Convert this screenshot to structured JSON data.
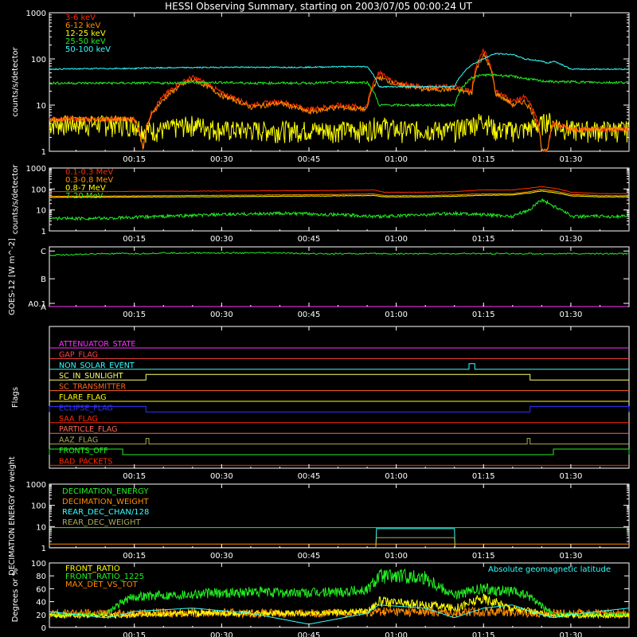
{
  "title": "HESSI Observing Summary, starting on 2003/07/05 00:00:24 UT",
  "time_axis": {
    "ticks": [
      "00:15",
      "00:30",
      "00:45",
      "01:00",
      "01:15",
      "01:30"
    ],
    "tick_minutes": [
      15,
      30,
      45,
      60,
      75,
      90
    ],
    "range_minutes": [
      0.4,
      100
    ]
  },
  "colors": {
    "white": "#ffffff",
    "red": "#ff2a00",
    "orange": "#ff8c00",
    "yellow": "#ffff00",
    "green": "#22ee22",
    "cyan": "#33ffff",
    "magenta": "#ff33ff",
    "blue": "#3333ff",
    "salmon": "#ff6666",
    "olive": "#c8b400",
    "gray_green": "#aaaa55"
  },
  "chart_data": [
    {
      "type": "line",
      "panel": "counts-high",
      "ylabel": "counts/s/detector",
      "scale": "log",
      "ylim": [
        1,
        1000
      ],
      "yticks": [
        "1",
        "10",
        "100",
        "1000"
      ],
      "legend": [
        "3-6 keV",
        "6-12 keV",
        "12-25 keV",
        "25-50 keV",
        "50-100 keV"
      ],
      "x": [
        0,
        10,
        15,
        16.5,
        20,
        25,
        30,
        35,
        40,
        45,
        50,
        55,
        57,
        60,
        65,
        70,
        73,
        75,
        77,
        80,
        82,
        85,
        86,
        87,
        90,
        95,
        100
      ],
      "series": [
        {
          "name": "3-6 keV",
          "color": "#ff2a00",
          "values": [
            5,
            5,
            5,
            1,
            15,
            40,
            18,
            10,
            12,
            8,
            10,
            9,
            50,
            30,
            25,
            25,
            20,
            150,
            20,
            12,
            15,
            1,
            1,
            4,
            3,
            3,
            3
          ]
        },
        {
          "name": "6-12 keV",
          "color": "#ff8c00",
          "values": [
            5,
            5,
            5,
            1,
            13,
            35,
            16,
            9,
            11,
            7,
            9,
            8,
            40,
            28,
            22,
            22,
            18,
            120,
            18,
            10,
            12,
            1,
            1,
            4,
            3,
            3,
            3
          ]
        },
        {
          "name": "12-25 keV",
          "color": "#ffff00",
          "values": [
            4,
            4,
            4,
            3,
            3,
            4,
            3,
            3,
            3,
            3,
            3,
            3,
            4,
            3,
            3,
            3,
            4,
            5,
            3,
            3,
            3,
            4,
            5,
            4,
            3,
            3,
            3
          ]
        },
        {
          "name": "25-50 keV",
          "color": "#22ee22",
          "values": [
            30,
            30,
            30,
            30,
            30,
            31,
            31,
            30,
            30,
            30,
            31,
            31,
            10,
            10,
            10,
            10,
            40,
            45,
            45,
            42,
            38,
            33,
            33,
            32,
            32,
            31,
            31
          ]
        },
        {
          "name": "50-100 keV",
          "color": "#33ffff",
          "values": [
            60,
            62,
            62,
            64,
            64,
            65,
            66,
            66,
            66,
            66,
            68,
            68,
            25,
            25,
            25,
            25,
            75,
            100,
            130,
            125,
            100,
            90,
            80,
            90,
            60,
            60,
            60
          ]
        }
      ]
    },
    {
      "type": "line",
      "panel": "counts-low",
      "ylabel": "counts/s/detector",
      "scale": "log",
      "ylim": [
        1,
        1000
      ],
      "yticks": [
        "1",
        "10",
        "100",
        "1000"
      ],
      "legend": [
        "0.1-0.3 MeV",
        "0.3-0.8 MeV",
        "0.8-7 MeV",
        "7-20 MeV"
      ],
      "x": [
        0,
        10,
        20,
        30,
        40,
        50,
        56,
        58,
        65,
        70,
        75,
        80,
        83,
        85,
        87,
        90,
        95,
        100
      ],
      "series": [
        {
          "name": "0.1-0.3 MeV",
          "color": "#ff2a00",
          "values": [
            75,
            76,
            78,
            80,
            82,
            85,
            90,
            70,
            70,
            75,
            90,
            90,
            110,
            130,
            110,
            70,
            60,
            60
          ]
        },
        {
          "name": "0.3-0.8 MeV",
          "color": "#ff8c00",
          "values": [
            45,
            46,
            48,
            50,
            52,
            55,
            58,
            48,
            48,
            52,
            58,
            60,
            75,
            95,
            80,
            55,
            48,
            48
          ]
        },
        {
          "name": "0.8-7 MeV",
          "color": "#ffff00",
          "values": [
            40,
            41,
            42,
            43,
            45,
            47,
            49,
            42,
            42,
            45,
            50,
            52,
            65,
            80,
            68,
            47,
            42,
            42
          ]
        },
        {
          "name": "7-20 MeV",
          "color": "#22ee22",
          "values": [
            4,
            4,
            5,
            6,
            7,
            6,
            5,
            5,
            6,
            7,
            6,
            5,
            10,
            30,
            15,
            5,
            5,
            5
          ]
        }
      ]
    },
    {
      "type": "line",
      "panel": "goes",
      "ylabel": "GOES-12 [W m^-2]",
      "scale": "log",
      "ytick_labels": [
        "A0.1",
        "A",
        "B",
        "C"
      ],
      "x": [
        0,
        10,
        15,
        16,
        20,
        30,
        35,
        40,
        45,
        50,
        55,
        60,
        65,
        70,
        75,
        78,
        80,
        85,
        90,
        95,
        100
      ],
      "series": [
        {
          "name": "GOES long",
          "color": "#22ee22",
          "classes": [
            "C0.7",
            "C0.8",
            "C0.8",
            "C0.8",
            "C0.85",
            "C0.85",
            "C0.85",
            "C0.85",
            "C0.8",
            "C0.8",
            "C0.8",
            "C0.8",
            "C0.8",
            "C0.8",
            "C0.8",
            "C0.8",
            "C0.8",
            "C0.8",
            "C0.8",
            "C0.8",
            "C0.8"
          ]
        },
        {
          "name": "GOES short",
          "color": "#ff33ff",
          "classes": [
            "A0.3",
            "A0.35",
            "A0.35",
            "A0.25",
            "A0.3",
            "A0.3",
            "A0.25",
            "A0.2",
            "A0.25",
            "A0.3",
            "A0.3",
            "A0.35",
            "A0.35",
            "A0.3",
            "A0.3",
            "A0.4",
            "A0.4",
            "A0.3",
            "A0.2",
            "A0.2",
            "A0.4"
          ]
        }
      ]
    },
    {
      "type": "line",
      "panel": "flags",
      "ylabel": "Flags",
      "series": [
        {
          "name": "ATTENUATOR_STATE",
          "color": "#ff33ff",
          "on": []
        },
        {
          "name": "GAP_FLAG",
          "color": "#ff4444",
          "on": []
        },
        {
          "name": "NON_SOLAR_EVENT",
          "color": "#33ffff",
          "on": [
            [
              72.5,
              73.5
            ]
          ]
        },
        {
          "name": "SC_IN_SUNLIGHT",
          "color": "#ffff66",
          "on": [
            [
              17,
              83
            ]
          ]
        },
        {
          "name": "SC_TRANSMITTER",
          "color": "#ff6622",
          "on": []
        },
        {
          "name": "FLARE_FLAG",
          "color": "#ffff00",
          "on": []
        },
        {
          "name": "ECLIPSE_FLAG",
          "color": "#3333ff",
          "on": [
            [
              0.4,
              17
            ],
            [
              83,
              100
            ]
          ]
        },
        {
          "name": "SAA_FLAG",
          "color": "#ff2a00",
          "on": []
        },
        {
          "name": "PARTICLE_FLAG",
          "color": "#ff6655",
          "on": []
        },
        {
          "name": "AAZ_FLAG",
          "color": "#aaaa55",
          "on": [
            [
              17,
              17.5
            ],
            [
              82.5,
              83
            ]
          ]
        },
        {
          "name": "FRONTS_OFF",
          "color": "#22ee22",
          "on": [
            [
              0.4,
              13
            ],
            [
              87,
              100
            ]
          ]
        },
        {
          "name": "BAD_PACKETS",
          "color": "#ff2a00",
          "on": []
        }
      ]
    },
    {
      "type": "line",
      "panel": "decimation",
      "ylabel": "DECIMATION ENERGY or weight",
      "scale": "log",
      "ylim": [
        1,
        1000
      ],
      "yticks": [
        "1",
        "10",
        "100",
        "1000"
      ],
      "legend": [
        "DECIMATION_ENERGY",
        "DECIMATION_WEIGHT",
        "REAR_DEC_CHAN/128",
        "REAR_DEC_WEIGHT"
      ],
      "x": [
        0.4,
        56.5,
        56.6,
        70,
        70.1,
        100
      ],
      "series": [
        {
          "name": "DECIMATION_ENERGY",
          "color": "#22ee22",
          "values": [
            9,
            9,
            9,
            9,
            9,
            9
          ]
        },
        {
          "name": "DECIMATION_WEIGHT",
          "color": "#ff8c00",
          "values": [
            1.5,
            1.5,
            1.5,
            1.5,
            1.5,
            1.5
          ]
        },
        {
          "name": "REAR_DEC_CHAN/128",
          "color": "#33ffff",
          "values": [
            1,
            1,
            8,
            8,
            1,
            1
          ]
        },
        {
          "name": "REAR_DEC_WEIGHT",
          "color": "#aaaa55",
          "values": [
            1,
            1,
            3,
            3,
            1,
            1
          ]
        }
      ]
    },
    {
      "type": "line",
      "panel": "ratios",
      "ylabel": "Degrees or %",
      "ylim": [
        0,
        100
      ],
      "yticks": [
        "0",
        "20",
        "40",
        "60",
        "80",
        "100"
      ],
      "legend": [
        "FRONT_RATIO",
        "FRONT_RATIO_1225",
        "MAX_DET_VS_TOT"
      ],
      "annotation": "Absolute geomagnetic latitude",
      "x": [
        0,
        10,
        13,
        15,
        25,
        35,
        45,
        55,
        57,
        65,
        70,
        75,
        80,
        83,
        87,
        90,
        100
      ],
      "series": [
        {
          "name": "FRONT_RATIO",
          "color": "#ffff00",
          "values": [
            18,
            18,
            18,
            20,
            22,
            22,
            22,
            25,
            40,
            35,
            30,
            45,
            30,
            25,
            18,
            18,
            18
          ]
        },
        {
          "name": "FRONT_RATIO_1225",
          "color": "#22ee22",
          "values": [
            20,
            20,
            40,
            48,
            52,
            55,
            53,
            58,
            80,
            78,
            50,
            60,
            55,
            48,
            20,
            20,
            20
          ]
        },
        {
          "name": "MAX_DET_VS_TOT",
          "color": "#ff8c00",
          "values": [
            22,
            22,
            22,
            22,
            23,
            22,
            22,
            23,
            25,
            24,
            23,
            25,
            24,
            23,
            22,
            22,
            22
          ]
        },
        {
          "name": "Absolute geomagnetic latitude",
          "color": "#33ffff",
          "values": [
            25,
            15,
            20,
            25,
            30,
            22,
            5,
            22,
            35,
            30,
            15,
            30,
            35,
            25,
            15,
            20,
            30
          ]
        }
      ]
    }
  ]
}
